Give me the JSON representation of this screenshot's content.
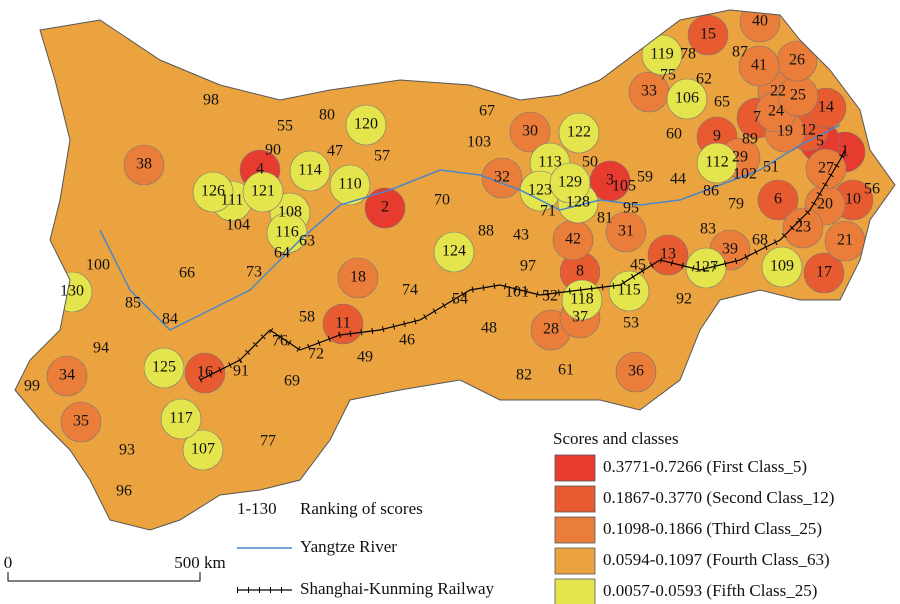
{
  "map": {
    "legend": {
      "title": "Scores and classes",
      "classes": [
        {
          "label": "0.3771-0.7266 (First Class_5)",
          "color": "#e63b2e"
        },
        {
          "label": "0.1867-0.3770 (Second Class_12)",
          "color": "#e85a30"
        },
        {
          "label": "0.1098-0.1866 (Third Class_25)",
          "color": "#ea7d3a"
        },
        {
          "label": "0.0594-0.1097 (Fourth Class_63)",
          "color": "#eba340"
        },
        {
          "label": "0.0057-0.0593 (Fifth Class_25)",
          "color": "#e4e44c"
        }
      ]
    },
    "key": {
      "rank_range": "1-130",
      "rank_text": "Ranking of scores",
      "river": "Yangtze River",
      "railway": "Shanghai-Kunming Railway"
    },
    "scale": {
      "start": "0",
      "end": "500 km"
    },
    "regions": [
      {
        "label": 1,
        "class": 0
      },
      {
        "label": 2,
        "class": 0
      },
      {
        "label": 3,
        "class": 0
      },
      {
        "label": 4,
        "class": 0
      },
      {
        "label": 5,
        "class": 0
      },
      {
        "label": 6,
        "class": 1
      },
      {
        "label": 7,
        "class": 1
      },
      {
        "label": 8,
        "class": 1
      },
      {
        "label": 9,
        "class": 1
      },
      {
        "label": 10,
        "class": 1
      },
      {
        "label": 11,
        "class": 1
      },
      {
        "label": 12,
        "class": 1
      },
      {
        "label": 13,
        "class": 1
      },
      {
        "label": 14,
        "class": 1
      },
      {
        "label": 15,
        "class": 1
      },
      {
        "label": 16,
        "class": 1
      },
      {
        "label": 17,
        "class": 1
      },
      {
        "label": 18,
        "class": 2
      },
      {
        "label": 19,
        "class": 2
      },
      {
        "label": 20,
        "class": 2
      },
      {
        "label": 21,
        "class": 2
      },
      {
        "label": 22,
        "class": 2
      },
      {
        "label": 23,
        "class": 2
      },
      {
        "label": 24,
        "class": 2
      },
      {
        "label": 25,
        "class": 2
      },
      {
        "label": 26,
        "class": 2
      },
      {
        "label": 27,
        "class": 2
      },
      {
        "label": 28,
        "class": 2
      },
      {
        "label": 29,
        "class": 2
      },
      {
        "label": 30,
        "class": 2
      },
      {
        "label": 31,
        "class": 2
      },
      {
        "label": 32,
        "class": 2
      },
      {
        "label": 33,
        "class": 2
      },
      {
        "label": 34,
        "class": 2
      },
      {
        "label": 35,
        "class": 2
      },
      {
        "label": 36,
        "class": 2
      },
      {
        "label": 37,
        "class": 2
      },
      {
        "label": 38,
        "class": 2
      },
      {
        "label": 39,
        "class": 2
      },
      {
        "label": 40,
        "class": 2
      },
      {
        "label": 41,
        "class": 2
      },
      {
        "label": 42,
        "class": 2
      },
      {
        "label": 43,
        "class": 3
      },
      {
        "label": 44,
        "class": 3
      },
      {
        "label": 45,
        "class": 3
      },
      {
        "label": 46,
        "class": 3
      },
      {
        "label": 47,
        "class": 3
      },
      {
        "label": 48,
        "class": 3
      },
      {
        "label": 49,
        "class": 3
      },
      {
        "label": 50,
        "class": 3
      },
      {
        "label": 51,
        "class": 3
      },
      {
        "label": 52,
        "class": 3
      },
      {
        "label": 53,
        "class": 3
      },
      {
        "label": 54,
        "class": 3
      },
      {
        "label": 55,
        "class": 3
      },
      {
        "label": 56,
        "class": 3
      },
      {
        "label": 57,
        "class": 3
      },
      {
        "label": 58,
        "class": 3
      },
      {
        "label": 59,
        "class": 3
      },
      {
        "label": 60,
        "class": 3
      },
      {
        "label": 61,
        "class": 3
      },
      {
        "label": 62,
        "class": 3
      },
      {
        "label": 63,
        "class": 3
      },
      {
        "label": 64,
        "class": 3
      },
      {
        "label": 65,
        "class": 3
      },
      {
        "label": 66,
        "class": 3
      },
      {
        "label": 67,
        "class": 3
      },
      {
        "label": 68,
        "class": 3
      },
      {
        "label": 69,
        "class": 3
      },
      {
        "label": 70,
        "class": 3
      },
      {
        "label": 71,
        "class": 3
      },
      {
        "label": 72,
        "class": 3
      },
      {
        "label": 73,
        "class": 3
      },
      {
        "label": 74,
        "class": 3
      },
      {
        "label": 75,
        "class": 3
      },
      {
        "label": 76,
        "class": 3
      },
      {
        "label": 77,
        "class": 3
      },
      {
        "label": 78,
        "class": 3
      },
      {
        "label": 79,
        "class": 3
      },
      {
        "label": 80,
        "class": 3
      },
      {
        "label": 81,
        "class": 3
      },
      {
        "label": 82,
        "class": 3
      },
      {
        "label": 83,
        "class": 3
      },
      {
        "label": 84,
        "class": 3
      },
      {
        "label": 85,
        "class": 3
      },
      {
        "label": 86,
        "class": 3
      },
      {
        "label": 87,
        "class": 3
      },
      {
        "label": 88,
        "class": 3
      },
      {
        "label": 89,
        "class": 3
      },
      {
        "label": 90,
        "class": 3
      },
      {
        "label": 91,
        "class": 3
      },
      {
        "label": 92,
        "class": 3
      },
      {
        "label": 93,
        "class": 3
      },
      {
        "label": 94,
        "class": 3
      },
      {
        "label": 95,
        "class": 3
      },
      {
        "label": 96,
        "class": 3
      },
      {
        "label": 97,
        "class": 3
      },
      {
        "label": 98,
        "class": 3
      },
      {
        "label": 99,
        "class": 3
      },
      {
        "label": 100,
        "class": 3
      },
      {
        "label": 101,
        "class": 3
      },
      {
        "label": 102,
        "class": 3
      },
      {
        "label": 103,
        "class": 3
      },
      {
        "label": 104,
        "class": 3
      },
      {
        "label": 105,
        "class": 3
      },
      {
        "label": 106,
        "class": 4
      },
      {
        "label": 107,
        "class": 4
      },
      {
        "label": 108,
        "class": 4
      },
      {
        "label": 109,
        "class": 4
      },
      {
        "label": 110,
        "class": 4
      },
      {
        "label": 111,
        "class": 4
      },
      {
        "label": 112,
        "class": 4
      },
      {
        "label": 113,
        "class": 4
      },
      {
        "label": 114,
        "class": 4
      },
      {
        "label": 115,
        "class": 4
      },
      {
        "label": 116,
        "class": 4
      },
      {
        "label": 117,
        "class": 4
      },
      {
        "label": 118,
        "class": 4
      },
      {
        "label": 119,
        "class": 4
      },
      {
        "label": 120,
        "class": 4
      },
      {
        "label": 121,
        "class": 4
      },
      {
        "label": 122,
        "class": 4
      },
      {
        "label": 123,
        "class": 4
      },
      {
        "label": 124,
        "class": 4
      },
      {
        "label": 125,
        "class": 4
      },
      {
        "label": 126,
        "class": 4
      },
      {
        "label": 127,
        "class": 4
      },
      {
        "label": 128,
        "class": 4
      },
      {
        "label": 129,
        "class": 4
      },
      {
        "label": 130,
        "class": 4
      }
    ]
  }
}
